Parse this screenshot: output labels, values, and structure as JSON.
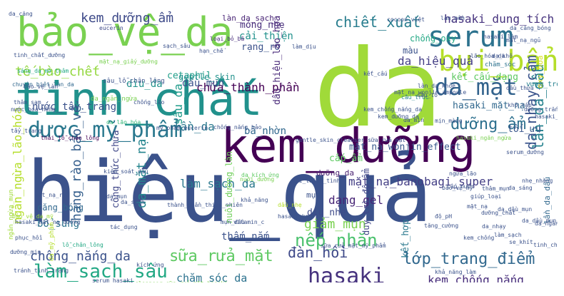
{
  "words": [
    {
      "text": "hiệu_quả",
      "color": "#3b528b"
    },
    {
      "text": "da",
      "color": "#a0da39"
    },
    {
      "text": "kem_dưỡng",
      "color": "#440154"
    },
    {
      "text": "tinh_chất",
      "color": "#21918c"
    },
    {
      "text": "bảo_vệ_da",
      "color": "#7ad151"
    },
    {
      "text": "dược_mỹ_phẩm",
      "color": "#2a788e"
    },
    {
      "text": "serum",
      "color": "#2c728e"
    },
    {
      "text": "bụi_bẩn",
      "color": "#b5de2b"
    },
    {
      "text": "da_mặt",
      "color": "#33638d"
    },
    {
      "text": "chiết_xuất",
      "color": "#287d8e"
    },
    {
      "text": "hasaki_dung_tích",
      "color": "#46337e"
    },
    {
      "text": "kem_dưỡng_ẩm",
      "color": "#3e4a89"
    },
    {
      "text": "làm_sạch_sâu",
      "color": "#22a884"
    },
    {
      "text": "hasaki",
      "color": "#46327e"
    },
    {
      "text": "lớp_trang_điểm",
      "color": "#31688e"
    },
    {
      "text": "nếp_nhăn",
      "color": "#4ac16d"
    },
    {
      "text": "giảm_mụn",
      "color": "#7ad151"
    },
    {
      "text": "đàn_hồi",
      "color": "#3e4989"
    },
    {
      "text": "kem_chống_nắng",
      "color": "#472d7b"
    },
    {
      "text": "chống_nắng_da",
      "color": "#3b528b"
    },
    {
      "text": "sữa_rửa_mặt",
      "color": "#5ec962"
    },
    {
      "text": "chăm_sóc_da",
      "color": "#2c728e"
    },
    {
      "text": "dưỡng_ẩm",
      "color": "#2d708e"
    },
    {
      "text": "da_nhạy_cảm",
      "color": "#3a548c"
    },
    {
      "text": "lần_da_dầu",
      "color": "#26828e"
    },
    {
      "text": "mặt_nạ_banobagi_super",
      "color": "#433e85"
    },
    {
      "text": "làm_sạch_da",
      "color": "#2a788e"
    },
    {
      "text": "hàng_rào_bảo_vệ",
      "color": "#355f8d"
    },
    {
      "text": "ngăn_ngừa_lão_hóa",
      "color": "#b5de2b"
    },
    {
      "text": "dạng_gel",
      "color": "#482576"
    },
    {
      "text": "tế_bào_chết",
      "color": "#95d840"
    },
    {
      "text": "nước_tẩy_trang",
      "color": "#3b528b"
    },
    {
      "text": "sâu_da",
      "color": "#1e9b8a"
    },
    {
      "text": "lần_da",
      "color": "#2a788e"
    },
    {
      "text": "da_mặt_nạ",
      "color": "#25858e"
    },
    {
      "text": "hasaki_mặt_nạ",
      "color": "#31688e"
    },
    {
      "text": "chứa_thành_phần",
      "color": "#440154"
    },
    {
      "text": "dầu_mụn",
      "color": "#3b528b"
    },
    {
      "text": "diu_da",
      "color": "#21918c"
    },
    {
      "text": "bã_nhờn",
      "color": "#31688e"
    },
    {
      "text": "kết_cấu_dạng",
      "color": "#5ec962"
    },
    {
      "text": "da_hiệu_quả",
      "color": "#433e85"
    },
    {
      "text": "cải_thiện",
      "color": "#21918c"
    },
    {
      "text": "mỏng_nhẹ",
      "color": "#472d7b"
    },
    {
      "text": "rạng_rỡ",
      "color": "#3b528b"
    },
    {
      "text": "dầu_hiệu_lão_hóa",
      "color": "#482878"
    },
    {
      "text": "mặt_nạ_wonjin_effect",
      "color": "#38598c"
    },
    {
      "text": "cetaphil",
      "color": "#1f9e89"
    },
    {
      "text": "gentle_skin",
      "color": "#21918c"
    },
    {
      "text": "oxy_hóa",
      "color": "#d8e219"
    },
    {
      "text": "lần_da_dầu",
      "color": "#31688e"
    },
    {
      "text": "diu_nhẹ",
      "color": "#3e4a89"
    },
    {
      "text": "duy_trì_độ_ẩm",
      "color": "#404688"
    },
    {
      "text": "tối_ưu",
      "color": "#39568c"
    },
    {
      "text": "cấp_ẩm",
      "color": "#5ec962"
    },
    {
      "text": "công_thức_chứa",
      "color": "#3f4788"
    },
    {
      "text": "kết_hợp",
      "color": "#2a788e"
    },
    {
      "text": "thấm_nắm",
      "color": "#3b528b"
    },
    {
      "text": "nuôi_dưỡng_làn",
      "color": "#6ece58"
    },
    {
      "text": "bổ_sung",
      "color": "#2c728e"
    },
    {
      "text": "chống_oxy",
      "color": "#22a884"
    },
    {
      "text": "màu",
      "color": "#3b528b"
    },
    {
      "text": "làn_da_sạch",
      "color": "#482475"
    },
    {
      "text": "dưỡng_da",
      "color": "#481f70"
    },
    {
      "text": "mụn",
      "color": "#3b528b"
    },
    {
      "text": "căng_bóng",
      "color": "#31688e"
    },
    {
      "text": "sâu_lỗ_chân_lông",
      "color": "#3b528b"
    },
    {
      "text": "thải_lỗ_chân_lông",
      "color": "#440154"
    },
    {
      "text": "da_ngăn_ngừa",
      "color": "#7ad151"
    },
    {
      "text": "ngăn_ngừa_mụn",
      "color": "#a0da39"
    },
    {
      "text": "da_mỹ_phẩm",
      "color": "#b5de2b"
    },
    {
      "text": "vượt_trội",
      "color": "#27808e"
    },
    {
      "text": "chăm_sóc",
      "color": "#2c728e"
    },
    {
      "text": "gentle_skin_cleanser_sữa_rửa_mặt",
      "color": "#3b528b"
    },
    {
      "text": "sữa_rửa_mặt_mỹ_phẩm",
      "color": "#3b528b"
    },
    {
      "text": "da_căng",
      "color": "#3b528b"
    },
    {
      "text": "eucerin",
      "color": "#3e4989"
    },
    {
      "text": "hasaki_ngăn_ngừa",
      "color": "#7ad151"
    },
    {
      "text": "thành_phần_thiên_nhiên",
      "color": "#3b528b"
    },
    {
      "text": "khả_năng",
      "color": "#3b528b"
    },
    {
      "text": "nuôi_dưỡng",
      "color": "#7ad151"
    },
    {
      "text": "da_kích_ứng",
      "color": "#5ec962"
    },
    {
      "text": "dầu_nhẹ",
      "color": "#b5de2b"
    },
    {
      "text": "lỗ_chân_lông",
      "color": "#22a884"
    },
    {
      "text": "da_lão_hóa",
      "color": "#35b779"
    },
    {
      "text": "mụn_đầu",
      "color": "#3b528b"
    },
    {
      "text": "tránh_tình_trạng",
      "color": "#3b528b"
    },
    {
      "text": "kiểm_soát_dầu",
      "color": "#3b528b"
    },
    {
      "text": "sáng_da_mờ_thâm",
      "color": "#22a884"
    },
    {
      "text": "loại_bỏ_bã",
      "color": "#472d7b"
    },
    {
      "text": "mặt_nạ_giấy_dưỡng",
      "color": "#7ad151"
    },
    {
      "text": "chuyên_biệt_làn_da",
      "color": "#31688e"
    },
    {
      "text": "cấu_trúc",
      "color": "#26828e"
    },
    {
      "text": "vitamin_c",
      "color": "#3b528b"
    },
    {
      "text": "cocoon_việt",
      "color": "#3b528b"
    },
    {
      "text": "mặt_nạ_wonjin_ampoule",
      "color": "#3b528b"
    },
    {
      "text": "da_mịn",
      "color": "#3b528b"
    },
    {
      "text": "mịn_màng",
      "color": "#3b528b"
    },
    {
      "text": "khô_ráp",
      "color": "#3b528b"
    },
    {
      "text": "da_dầu_mụn",
      "color": "#3b528b"
    },
    {
      "text": "bảo_vệ_da_mỹ",
      "color": "#a0da39"
    },
    {
      "text": "làn_da_khỏe",
      "color": "#3b528b"
    },
    {
      "text": "mỹ_phẩm_eucerin",
      "color": "#3b528b"
    },
    {
      "text": "hasaki_mặt_nạ_dưỡng",
      "color": "#3b528b"
    },
    {
      "text": "cấp_nước",
      "color": "#3b528b"
    },
    {
      "text": "sâu_lỗ",
      "color": "#3b528b"
    },
    {
      "text": "da_căng_bóng",
      "color": "#3b528b"
    },
    {
      "text": "da_nhạy",
      "color": "#3b528b"
    },
    {
      "text": "giúp_loại",
      "color": "#3b528b"
    },
    {
      "text": "kem_chống",
      "color": "#3b528b"
    },
    {
      "text": "ngừa_lão",
      "color": "#3b528b"
    },
    {
      "text": "cải_thiện_tình",
      "color": "#3b528b"
    },
    {
      "text": "độ_pH",
      "color": "#3b528b"
    },
    {
      "text": "phục_hồi",
      "color": "#3b528b"
    },
    {
      "text": "cleanser_sữa_rửa_mặt_hasaki",
      "color": "#7ad151"
    },
    {
      "text": "da_dầu_mụn_nhạy",
      "color": "#3b528b"
    },
    {
      "text": "làm_sạch",
      "color": "#3b528b"
    },
    {
      "text": "se_khít",
      "color": "#3b528b"
    },
    {
      "text": "khả_năng_làm",
      "color": "#3b528b"
    },
    {
      "text": "bảo_vệ_làn",
      "color": "#3b528b"
    },
    {
      "text": "tinh_chất_dưỡng",
      "color": "#3b528b"
    },
    {
      "text": "mặt_nạ_ngủ",
      "color": "#3b528b"
    },
    {
      "text": "dưỡng_chất",
      "color": "#3b528b"
    },
    {
      "text": "da_sáng",
      "color": "#3b528b"
    },
    {
      "text": "thâm_mụn",
      "color": "#3b528b"
    },
    {
      "text": "mặt_nạ_rửa",
      "color": "#3b528b"
    },
    {
      "text": "kem_dưỡng_da",
      "color": "#3b528b"
    },
    {
      "text": "serum_dưỡng",
      "color": "#3b528b"
    },
    {
      "text": "da_mụn",
      "color": "#3b528b"
    },
    {
      "text": "hasaki_kem",
      "color": "#3b528b"
    },
    {
      "text": "thâm_sạm",
      "color": "#3b528b"
    },
    {
      "text": "bảo_vệ_mỹ",
      "color": "#3b528b"
    },
    {
      "text": "chống_lão",
      "color": "#3b528b"
    },
    {
      "text": "tẩy_trang",
      "color": "#3b528b"
    },
    {
      "text": "nước_hoa_hồng",
      "color": "#3b528b"
    },
    {
      "text": "hạn_chế",
      "color": "#3b528b"
    },
    {
      "text": "tăng_cường",
      "color": "#3b528b"
    },
    {
      "text": "dưỡng_trắng",
      "color": "#3b528b"
    },
    {
      "text": "da_khô",
      "color": "#3b528b"
    },
    {
      "text": "kết_cấu",
      "color": "#3b528b"
    },
    {
      "text": "hasaki_làm",
      "color": "#3b528b"
    },
    {
      "text": "kem_chống_nắng_da",
      "color": "#3b528b"
    },
    {
      "text": "da_ngăn",
      "color": "#3b528b"
    },
    {
      "text": "chống_nắng_bảo",
      "color": "#3b528b"
    },
    {
      "text": "serum_hasaki",
      "color": "#3b528b"
    },
    {
      "text": "tinh_chất_hasaki",
      "color": "#3b528b"
    },
    {
      "text": "làm_dịu",
      "color": "#3b528b"
    },
    {
      "text": "lão_hóa_da",
      "color": "#3b528b"
    },
    {
      "text": "dầu_thừa",
      "color": "#3b528b"
    },
    {
      "text": "hasaki_tinh",
      "color": "#3b528b"
    },
    {
      "text": "mặt_nạ",
      "color": "#3b528b"
    },
    {
      "text": "da_sạch",
      "color": "#3b528b"
    },
    {
      "text": "dưỡng_mịn",
      "color": "#3b528b"
    },
    {
      "text": "làm_mềm",
      "color": "#3b528b"
    },
    {
      "text": "nhẹ_nhàng",
      "color": "#3b528b"
    },
    {
      "text": "tác_dụng",
      "color": "#3b528b"
    },
    {
      "text": "kích_ứng",
      "color": "#3b528b"
    },
    {
      "text": "sạch_sâu",
      "color": "#3b528b"
    }
  ]
}
